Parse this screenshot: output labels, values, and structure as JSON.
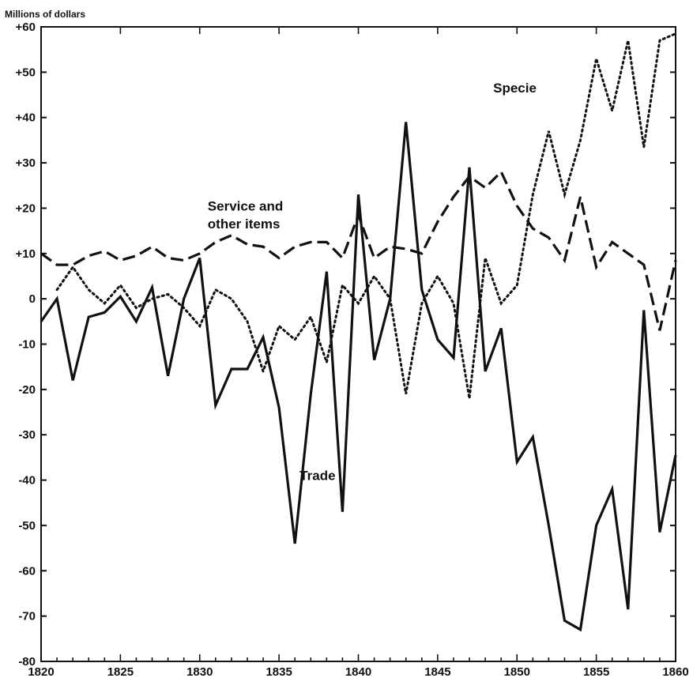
{
  "chart_data": {
    "type": "line",
    "ylabel": "Millions of dollars",
    "xlim": [
      1820,
      1860
    ],
    "ylim": [
      -80,
      60
    ],
    "xticks": [
      1820,
      1825,
      1830,
      1835,
      1840,
      1845,
      1850,
      1855,
      1860
    ],
    "yticks": [
      60,
      50,
      40,
      30,
      20,
      10,
      0,
      -10,
      -20,
      -30,
      -40,
      -50,
      -60,
      -70,
      -80
    ],
    "ytick_labels": [
      "+60",
      "+50",
      "+40",
      "+30",
      "+20",
      "+10",
      "0",
      "-10",
      "-20",
      "-30",
      "-40",
      "-50",
      "-60",
      "-70",
      "-80"
    ],
    "grid": false,
    "series": [
      {
        "name": "Trade",
        "style": "solid",
        "color": "#111111",
        "x": [
          1820,
          1821,
          1822,
          1823,
          1824,
          1825,
          1826,
          1827,
          1828,
          1829,
          1830,
          1831,
          1832,
          1833,
          1834,
          1835,
          1836,
          1837,
          1838,
          1839,
          1840,
          1841,
          1842,
          1843,
          1844,
          1845,
          1846,
          1847,
          1848,
          1849,
          1850,
          1851,
          1852,
          1853,
          1854,
          1855,
          1856,
          1857,
          1858,
          1859,
          1860
        ],
        "y": [
          -5,
          0,
          -18,
          -4,
          -3,
          0.5,
          -5,
          2.5,
          -17,
          0,
          9,
          -23.5,
          -15.5,
          -15.5,
          -8.5,
          -24,
          -54,
          -21,
          6,
          -47,
          23,
          -13.5,
          0,
          39,
          2,
          -9,
          -13,
          29,
          -16,
          -6.5,
          -36,
          -30.5,
          -50,
          -71,
          -73,
          -50,
          -42,
          -68.5,
          -2.5,
          -51.5,
          -34.5
        ]
      },
      {
        "name": "Service and other items",
        "style": "dashed",
        "color": "#111111",
        "x": [
          1820,
          1821,
          1822,
          1823,
          1824,
          1825,
          1826,
          1827,
          1828,
          1829,
          1830,
          1831,
          1832,
          1833,
          1834,
          1835,
          1836,
          1837,
          1838,
          1839,
          1840,
          1841,
          1842,
          1843,
          1844,
          1845,
          1846,
          1847,
          1848,
          1849,
          1850,
          1851,
          1852,
          1853,
          1854,
          1855,
          1856,
          1857,
          1858,
          1859,
          1860
        ],
        "y": [
          10,
          7.5,
          7.5,
          9.5,
          10.5,
          8.5,
          9.5,
          11.5,
          9,
          8.5,
          10,
          12.5,
          14,
          12,
          11.5,
          9,
          11.5,
          12.5,
          12.5,
          9,
          18.5,
          9,
          11.5,
          11,
          10,
          17,
          22.5,
          27,
          24.5,
          28,
          20.5,
          15.5,
          13.5,
          8.5,
          22.5,
          7,
          12.5,
          10,
          7.5,
          -7,
          8.5
        ]
      },
      {
        "name": "Specie",
        "style": "dotted",
        "color": "#111111",
        "x": [
          1821,
          1822,
          1823,
          1824,
          1825,
          1826,
          1827,
          1828,
          1829,
          1830,
          1831,
          1832,
          1833,
          1834,
          1835,
          1836,
          1837,
          1838,
          1839,
          1840,
          1841,
          1842,
          1843,
          1844,
          1845,
          1846,
          1847,
          1848,
          1849,
          1850,
          1851,
          1852,
          1853,
          1854,
          1855,
          1856,
          1857,
          1858,
          1859,
          1860
        ],
        "y": [
          2,
          7,
          2,
          -1,
          3,
          -2,
          0,
          1,
          -2,
          -6,
          2,
          0,
          -5,
          -16,
          -6,
          -9,
          -4,
          -14,
          3,
          -1,
          5,
          0,
          -21,
          -1,
          5,
          -1,
          -22,
          9,
          -1,
          3,
          23,
          37,
          23,
          35,
          53,
          41.5,
          57,
          33.5,
          57,
          58.5
        ]
      }
    ],
    "annotations": [
      {
        "text": "Trade",
        "x": 1836.3,
        "y": -40
      },
      {
        "text": "Service and",
        "x": 1830.5,
        "y": 19.5
      },
      {
        "text": "other items",
        "x": 1830.5,
        "y": 15.5
      },
      {
        "text": "Specie",
        "x": 1848.5,
        "y": 45.5
      }
    ]
  }
}
